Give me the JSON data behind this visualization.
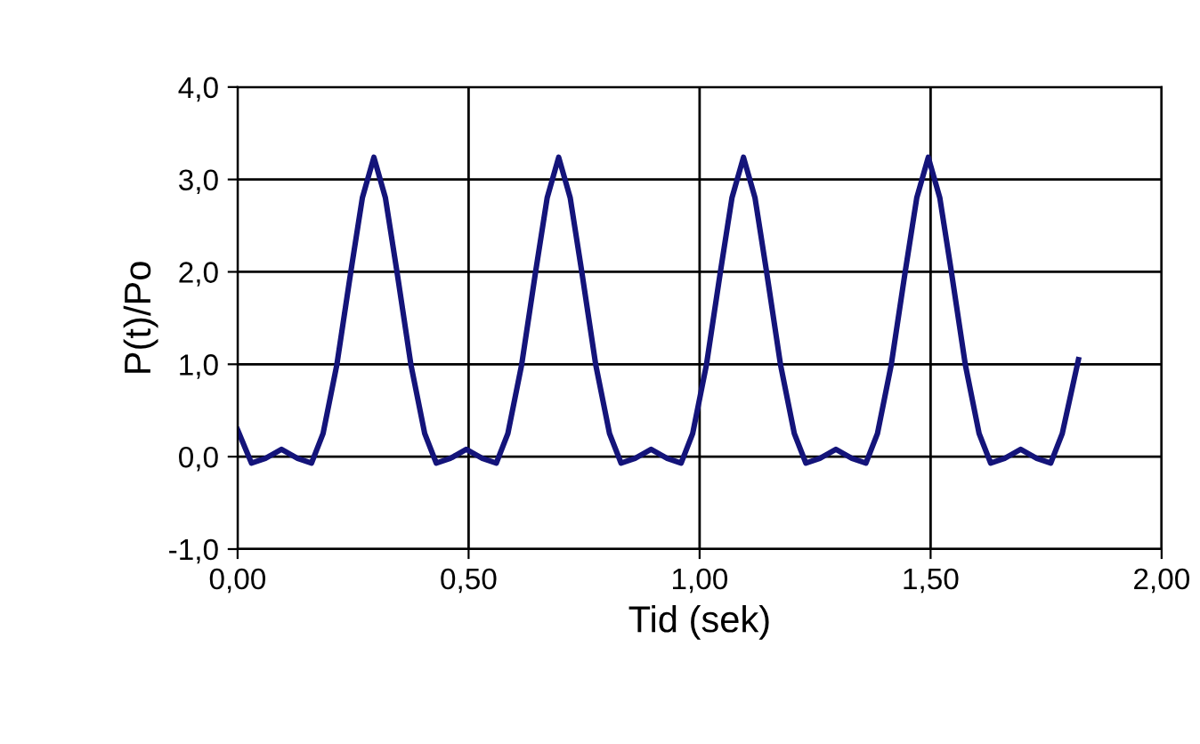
{
  "chart_data": {
    "type": "line",
    "xlabel": "Tid (sek)",
    "ylabel": "P(t)/Po",
    "x": [
      0.0,
      0.03,
      0.06,
      0.095,
      0.13,
      0.16,
      0.185,
      0.215,
      0.245,
      0.27,
      0.295,
      0.32,
      0.345,
      0.375,
      0.405,
      0.43,
      0.46,
      0.495,
      0.53,
      0.56,
      0.585,
      0.615,
      0.645,
      0.67,
      0.695,
      0.72,
      0.745,
      0.775,
      0.805,
      0.83,
      0.86,
      0.895,
      0.93,
      0.96,
      0.985,
      1.015,
      1.045,
      1.07,
      1.095,
      1.12,
      1.145,
      1.175,
      1.205,
      1.23,
      1.26,
      1.295,
      1.33,
      1.36,
      1.385,
      1.415,
      1.445,
      1.47,
      1.495,
      1.52,
      1.545,
      1.575,
      1.605,
      1.63,
      1.66,
      1.695,
      1.73,
      1.76,
      1.785,
      1.82
    ],
    "series": [
      {
        "color": "#14147a",
        "values": [
          0.29,
          -0.07,
          -0.02,
          0.08,
          -0.02,
          -0.07,
          0.25,
          1.0,
          2.0,
          2.8,
          3.24,
          2.8,
          2.0,
          1.0,
          0.25,
          -0.07,
          -0.02,
          0.08,
          -0.02,
          -0.07,
          0.25,
          1.0,
          2.0,
          2.8,
          3.24,
          2.8,
          2.0,
          1.0,
          0.25,
          -0.07,
          -0.02,
          0.08,
          -0.02,
          -0.07,
          0.25,
          1.0,
          2.0,
          2.8,
          3.24,
          2.8,
          2.0,
          1.0,
          0.25,
          -0.07,
          -0.02,
          0.08,
          -0.02,
          -0.07,
          0.25,
          1.0,
          2.0,
          2.8,
          3.24,
          2.8,
          2.0,
          1.0,
          0.25,
          -0.07,
          -0.02,
          0.08,
          -0.02,
          -0.07,
          0.25,
          1.05
        ]
      }
    ],
    "xlim": [
      0,
      2
    ],
    "ylim": [
      -1,
      4
    ],
    "xticks": [
      {
        "value": 0,
        "label": "0,00"
      },
      {
        "value": 0.5,
        "label": "0,50"
      },
      {
        "value": 1,
        "label": "1,00"
      },
      {
        "value": 1.5,
        "label": "1,50"
      },
      {
        "value": 2,
        "label": "2,00"
      }
    ],
    "yticks": [
      {
        "value": -1,
        "label": "-1,0"
      },
      {
        "value": 0,
        "label": "0,0"
      },
      {
        "value": 1,
        "label": "1,0"
      },
      {
        "value": 2,
        "label": "2,0"
      },
      {
        "value": 3,
        "label": "3,0"
      },
      {
        "value": 4,
        "label": "4,0"
      }
    ],
    "grid": true,
    "legend": false,
    "marker": "none",
    "line_style": "solid"
  }
}
